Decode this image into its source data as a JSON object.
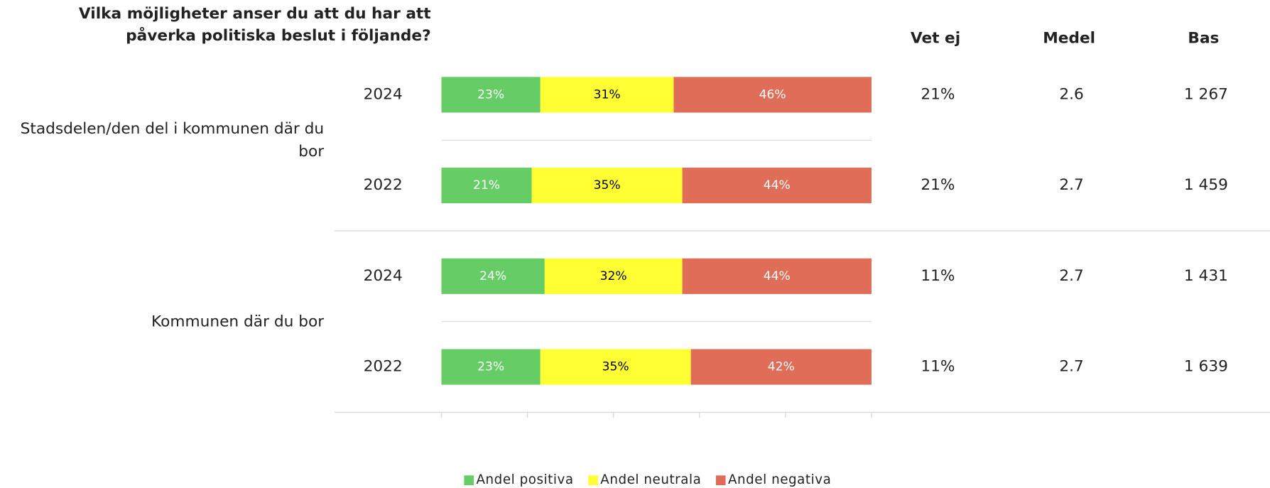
{
  "chart_data": {
    "type": "bar",
    "orientation": "horizontal",
    "stacked": true,
    "title": "Vilka möjligheter anser du att du har att påverka politiska beslut i följande?",
    "groups": [
      {
        "name": "Stadsdelen/den del i kommunen där du bor",
        "categories": [
          "2024",
          "2022"
        ]
      },
      {
        "name": "Kommunen där du bor",
        "categories": [
          "2024",
          "2022"
        ]
      }
    ],
    "series": [
      {
        "name": "Andel positiva",
        "color": "#66cd66",
        "label_color": "#ffffff",
        "values": [
          23,
          21,
          24,
          23
        ],
        "value_labels": [
          "23%",
          "21%",
          "24%",
          "23%"
        ]
      },
      {
        "name": "Andel neutrala",
        "color": "#ffff33",
        "label_color": "#000000",
        "values": [
          31,
          35,
          32,
          35
        ],
        "value_labels": [
          "31%",
          "35%",
          "32%",
          "35%"
        ]
      },
      {
        "name": "Andel negativa",
        "color": "#e06d58",
        "label_color": "#ffffff",
        "values": [
          46,
          44,
          44,
          42
        ],
        "value_labels": [
          "46%",
          "44%",
          "44%",
          "42%"
        ]
      }
    ],
    "columns": [
      {
        "name": "Vet ej",
        "values": [
          21,
          21,
          11,
          11
        ],
        "value_labels": [
          "21%",
          "21%",
          "11%",
          "11%"
        ]
      },
      {
        "name": "Medel",
        "values": [
          2.6,
          2.7,
          2.7,
          2.7
        ]
      },
      {
        "name": "Bas",
        "values": [
          1267,
          1459,
          1431,
          1639
        ],
        "value_labels": [
          "1 267",
          "1 459",
          "1 431",
          "1 639"
        ]
      }
    ],
    "xlim": [
      0,
      100
    ],
    "xticks": [
      0,
      20,
      40,
      60,
      80,
      100
    ],
    "legend": "bottom"
  }
}
